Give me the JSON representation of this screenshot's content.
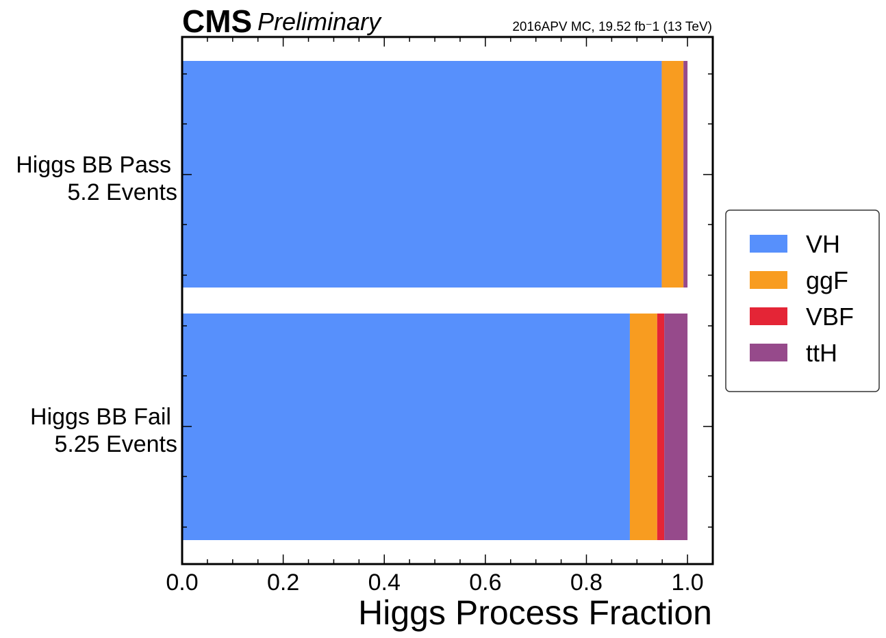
{
  "header": {
    "experiment": "CMS",
    "status": "Preliminary",
    "lumi_text": "2016APV MC, 19.52 fb⁻1 (13 TeV)"
  },
  "chart_data": {
    "type": "bar",
    "orientation": "horizontal",
    "stacked": true,
    "title": "",
    "xlabel": "Higgs Process Fraction",
    "ylabel": "",
    "xlim": [
      0,
      1.05
    ],
    "xticks": [
      "0.0",
      "0.2",
      "0.4",
      "0.6",
      "0.8",
      "1.0"
    ],
    "categories": [
      {
        "name": "Higgs BB Pass",
        "events": "5.2 Events"
      },
      {
        "name": "Higgs BB Fail",
        "events": "5.25 Events"
      }
    ],
    "series": [
      {
        "name": "VH",
        "color": "#5790fc",
        "values": [
          0.949,
          0.886
        ]
      },
      {
        "name": "ggF",
        "color": "#f89c20",
        "values": [
          0.043,
          0.054
        ]
      },
      {
        "name": "VBF",
        "color": "#e42536",
        "values": [
          0.0,
          0.014
        ]
      },
      {
        "name": "ttH",
        "color": "#964a8b",
        "values": [
          0.008,
          0.046
        ]
      }
    ],
    "legend_position": "outside-right",
    "grid": false
  }
}
